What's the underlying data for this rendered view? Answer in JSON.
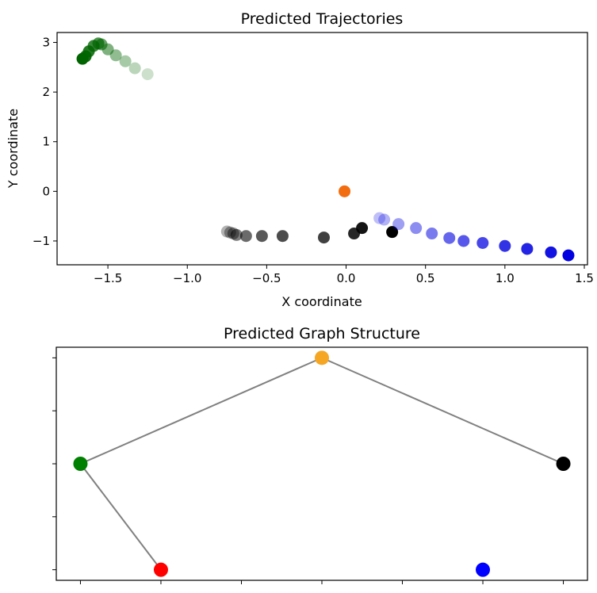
{
  "chart_data": [
    {
      "type": "scatter",
      "title": "Predicted Trajectories",
      "xlabel": "X coordinate",
      "ylabel": "Y coordinate",
      "xlim": [
        -1.82,
        1.52
      ],
      "ylim": [
        -1.48,
        3.2
      ],
      "xticks": [
        -1.5,
        -1.0,
        -0.5,
        0.0,
        0.5,
        1.0,
        1.5
      ],
      "xtick_labels": [
        "−1.5",
        "−1.0",
        "−0.5",
        "0.0",
        "0.5",
        "1.0",
        "1.5"
      ],
      "yticks": [
        -1,
        0,
        1,
        2,
        3
      ],
      "ytick_labels": [
        "−1",
        "0",
        "1",
        "2",
        "3"
      ],
      "grid": false,
      "series": [
        {
          "color": "#006400",
          "x": [
            -1.25,
            -1.33,
            -1.39,
            -1.45,
            -1.5,
            -1.54,
            -1.56,
            -1.59,
            -1.62,
            -1.64,
            -1.66
          ],
          "y": [
            2.36,
            2.48,
            2.62,
            2.74,
            2.86,
            2.96,
            2.98,
            2.93,
            2.82,
            2.72,
            2.67
          ],
          "alpha": [
            0.2,
            0.27,
            0.35,
            0.43,
            0.5,
            0.6,
            0.7,
            0.78,
            0.86,
            0.93,
            1.0
          ]
        },
        {
          "color": "#000000",
          "x": [
            -0.75,
            -0.73,
            -0.71,
            -0.69,
            -0.63,
            -0.53,
            -0.4,
            -0.14,
            0.05,
            0.1,
            0.29
          ],
          "y": [
            -0.81,
            -0.83,
            -0.85,
            -0.88,
            -0.9,
            -0.9,
            -0.9,
            -0.93,
            -0.85,
            -0.74,
            -0.82
          ],
          "alpha": [
            0.3,
            0.35,
            0.42,
            0.5,
            0.58,
            0.65,
            0.7,
            0.75,
            0.85,
            0.92,
            1.0
          ]
        },
        {
          "color": "#0000e0",
          "x": [
            0.21,
            0.24,
            0.33,
            0.44,
            0.54,
            0.65,
            0.74,
            0.86,
            1.0,
            1.14,
            1.29,
            1.4
          ],
          "y": [
            -0.54,
            -0.57,
            -0.66,
            -0.74,
            -0.85,
            -0.94,
            -1.0,
            -1.04,
            -1.1,
            -1.16,
            -1.23,
            -1.29
          ],
          "alpha": [
            0.25,
            0.3,
            0.38,
            0.45,
            0.52,
            0.6,
            0.66,
            0.72,
            0.8,
            0.86,
            0.93,
            1.0
          ]
        },
        {
          "color": "#f26d0f",
          "x": [
            -0.01
          ],
          "y": [
            0.0
          ],
          "alpha": [
            1.0
          ]
        }
      ]
    },
    {
      "type": "network",
      "title": "Predicted Graph Structure",
      "xlim": [
        -0.3,
        6.3
      ],
      "ylim": [
        -0.2,
        4.2
      ],
      "xticks": [
        0,
        1,
        2,
        3,
        4,
        5,
        6
      ],
      "yticks": [
        0,
        1,
        2,
        3,
        4
      ],
      "nodes": [
        {
          "id": "orange",
          "x": 3,
          "y": 4,
          "color": "#f5a623"
        },
        {
          "id": "green",
          "x": 0,
          "y": 2,
          "color": "#008000"
        },
        {
          "id": "black",
          "x": 6,
          "y": 2,
          "color": "#000000"
        },
        {
          "id": "red",
          "x": 1,
          "y": 0,
          "color": "#ff0000"
        },
        {
          "id": "blue",
          "x": 5,
          "y": 0,
          "color": "#0000ff"
        }
      ],
      "edges": [
        [
          "orange",
          "green"
        ],
        [
          "orange",
          "black"
        ],
        [
          "green",
          "red"
        ]
      ],
      "edge_color": "#808080"
    }
  ]
}
